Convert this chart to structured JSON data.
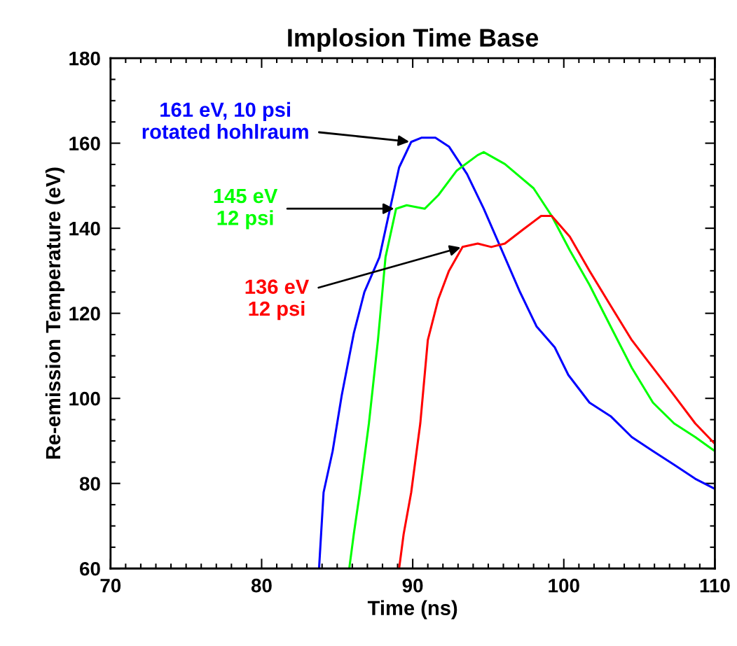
{
  "chart_data": {
    "type": "line",
    "title": "Implosion Time Base",
    "xlabel": "Time (ns)",
    "ylabel": "Re-emission Temperature (eV)",
    "xlim": [
      70,
      110
    ],
    "xticks": [
      70,
      80,
      90,
      100,
      110
    ],
    "ylim": [
      60,
      180
    ],
    "yticks": [
      60,
      80,
      100,
      120,
      140,
      160,
      180
    ],
    "grid": false,
    "legend": false,
    "marker": "none",
    "line_style": "solid",
    "series": [
      {
        "color": "#0000ff",
        "x": [
          83.8,
          84.1,
          84.7,
          85.3,
          86.1,
          86.8,
          87.8,
          88.5,
          89.1,
          89.9,
          90.6,
          91.5,
          92.4,
          93.6,
          94.7,
          95.9,
          97.1,
          98.2,
          99.4,
          100.3,
          101.7,
          103.1,
          104.5,
          105.9,
          107.3,
          108.7,
          110
        ],
        "values": [
          60,
          77.9,
          87.6,
          100.7,
          115.3,
          125,
          133.2,
          144.6,
          154.3,
          160.3,
          161.3,
          161.3,
          159.2,
          152.7,
          144.6,
          134.8,
          125,
          116.9,
          112,
          105.5,
          99,
          95.8,
          90.9,
          87.6,
          84.4,
          81.1,
          78.7
        ]
      },
      {
        "color": "#00ff00",
        "x": [
          85.8,
          86.1,
          86.5,
          87.1,
          87.7,
          88.2,
          88.9,
          89.6,
          90.8,
          91.7,
          92.9,
          94.3,
          94.7,
          96.1,
          98.0,
          99.2,
          100.4,
          101.7,
          103.1,
          104.5,
          105.9,
          107.3,
          108.7,
          110
        ],
        "values": [
          60,
          68.1,
          77.9,
          94.1,
          113.7,
          133.2,
          144.6,
          145.4,
          144.6,
          147.8,
          153.5,
          157.2,
          157.9,
          155.1,
          149.4,
          142.9,
          134.8,
          126.7,
          116.9,
          107.2,
          99,
          94.1,
          90.9,
          87.6
        ]
      },
      {
        "color": "#ff0000",
        "x": [
          89.1,
          89.4,
          89.9,
          90.5,
          91.0,
          91.7,
          92.4,
          93.3,
          94.3,
          95.2,
          96.1,
          97.3,
          98.5,
          99.2,
          100.4,
          101.7,
          103.1,
          104.5,
          105.9,
          107.3,
          108.7,
          110
        ],
        "values": [
          60,
          68.1,
          77.9,
          94.1,
          113.7,
          123.4,
          130,
          135.6,
          136.4,
          135.6,
          136.4,
          139.7,
          142.9,
          142.9,
          138,
          130,
          121.8,
          113.7,
          107.2,
          100.7,
          94.1,
          89.3
        ]
      }
    ],
    "annotations": [
      {
        "text": "161 eV, 10 psi\nrotated hohlraum",
        "x": 89.9,
        "y": 160.3
      },
      {
        "text": "145 eV\n12 psi",
        "x": 88.9,
        "y": 144.6
      },
      {
        "text": "136 eV\n12 psi",
        "x": 93.3,
        "y": 135.6
      }
    ]
  }
}
